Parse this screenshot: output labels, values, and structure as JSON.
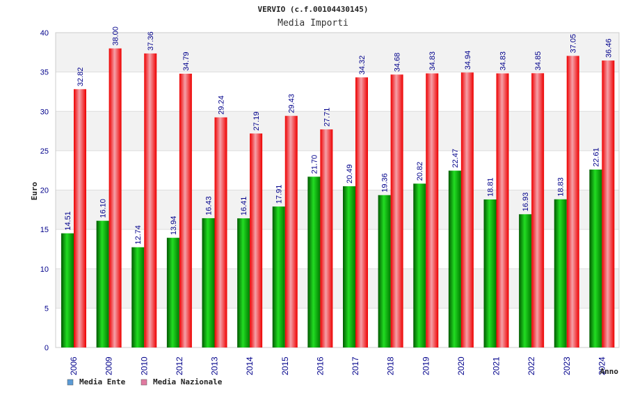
{
  "chart_data": {
    "type": "bar",
    "title": "VERVIO (c.f.00104430145)",
    "subtitle": "Media Importi",
    "xlabel": "Anno",
    "ylabel": "Euro",
    "ylim": [
      0,
      40
    ],
    "yticks": [
      0,
      5,
      10,
      15,
      20,
      25,
      30,
      35,
      40
    ],
    "categories": [
      "2006",
      "2009",
      "2010",
      "2012",
      "2013",
      "2014",
      "2015",
      "2016",
      "2017",
      "2018",
      "2019",
      "2020",
      "2021",
      "2022",
      "2023",
      "2024"
    ],
    "series": [
      {
        "name": "Media Ente",
        "color": "#00aa00",
        "values": [
          14.51,
          16.1,
          12.74,
          13.94,
          16.43,
          16.41,
          17.91,
          21.7,
          20.49,
          19.36,
          20.82,
          22.47,
          18.81,
          16.93,
          18.83,
          22.61
        ],
        "labels": [
          "14.51",
          "16.10",
          "12.74",
          "13.94",
          "16.43",
          "16.41",
          "17.91",
          "21.70",
          "20.49",
          "19.36",
          "20.82",
          "22.47",
          "18.81",
          "16.93",
          "18.83",
          "22.61"
        ]
      },
      {
        "name": "Media Nazionale",
        "color": "#ee0000",
        "values": [
          32.82,
          38.0,
          37.36,
          34.79,
          29.24,
          27.19,
          29.43,
          27.71,
          34.32,
          34.68,
          34.83,
          34.94,
          34.83,
          34.85,
          37.05,
          36.46
        ],
        "labels": [
          "32.82",
          "38.00",
          "37.36",
          "34.79",
          "29.24",
          "27.19",
          "29.43",
          "27.71",
          "34.32",
          "34.68",
          "34.83",
          "34.94",
          "34.83",
          "34.85",
          "37.05",
          "36.46"
        ]
      }
    ],
    "legend": [
      {
        "label": "Media Ente",
        "color": "#5b9bd5"
      },
      {
        "label": "Media Nazionale",
        "color": "#e07aa0"
      }
    ],
    "legend_position": "bottom-left",
    "grid": true
  }
}
